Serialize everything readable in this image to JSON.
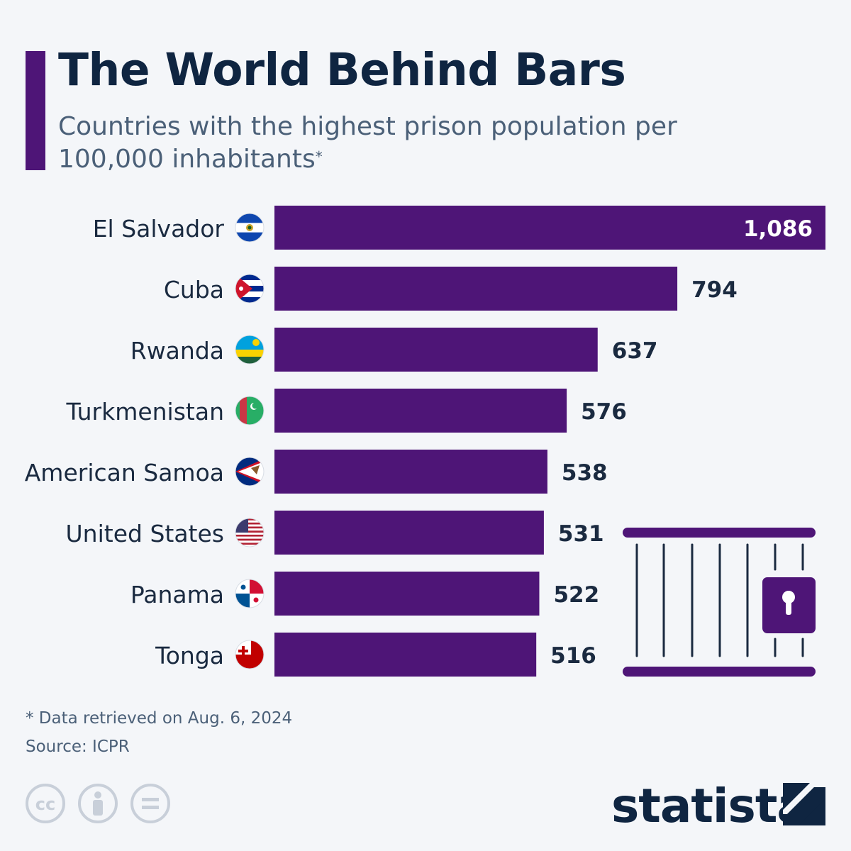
{
  "header": {
    "title": "The World Behind Bars",
    "subtitle": "Countries with the highest prison population per 100,000 inhabitants",
    "subtitle_mark": "*"
  },
  "footer": {
    "footnote": "* Data retrieved on Aug. 6, 2024",
    "source": "Source: ICPR",
    "logo": "statista",
    "license_icons": [
      "cc-icon",
      "attribution-icon",
      "no-derivatives-icon"
    ]
  },
  "colors": {
    "bar": "#4e1577",
    "title": "#0f2541",
    "subtitle": "#4b6078",
    "label": "#1a2a40",
    "background": "#f4f6f9"
  },
  "chart_data": {
    "type": "bar",
    "orientation": "horizontal",
    "categories": [
      "El Salvador",
      "Cuba",
      "Rwanda",
      "Turkmenistan",
      "American Samoa",
      "United States",
      "Panama",
      "Tonga"
    ],
    "values": [
      1086,
      794,
      637,
      576,
      538,
      531,
      522,
      516
    ],
    "value_labels": [
      "1,086",
      "794",
      "637",
      "576",
      "538",
      "531",
      "522",
      "516"
    ],
    "flag_icons": [
      "el-salvador-flag-icon",
      "cuba-flag-icon",
      "rwanda-flag-icon",
      "turkmenistan-flag-icon",
      "american-samoa-flag-icon",
      "united-states-flag-icon",
      "panama-flag-icon",
      "tonga-flag-icon"
    ],
    "xlim": [
      0,
      1086
    ],
    "grid": false,
    "legend": "none"
  }
}
